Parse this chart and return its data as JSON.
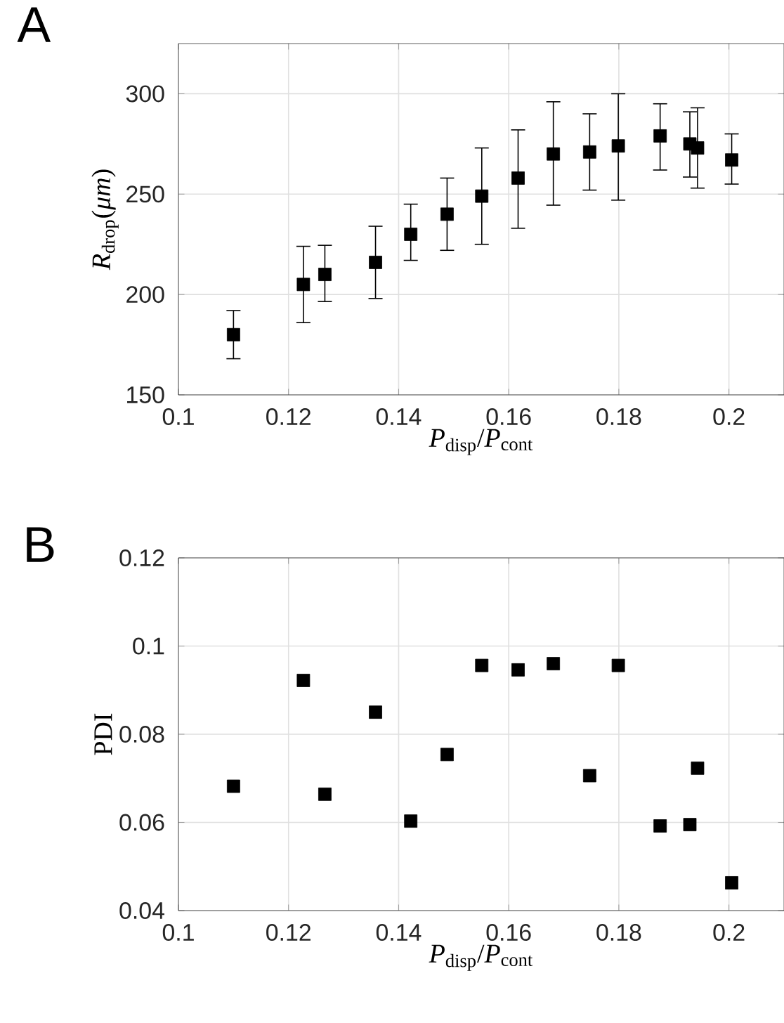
{
  "chart_data": [
    {
      "type": "scatter",
      "annotations": [
        "A"
      ],
      "xlabel": "*P*$_{disp}$/*P*$_{cont}$",
      "ylabel": "*R*$_{drop}$(*μm*)",
      "color": "#000000",
      "marker": "square",
      "grid": true,
      "x": [
        0.11,
        0.1227,
        0.1266,
        0.1358,
        0.1422,
        0.1488,
        0.1551,
        0.1617,
        0.1681,
        0.1747,
        0.1799,
        0.1875,
        0.1929,
        0.1943,
        0.2005
      ],
      "values": [
        180,
        205,
        210,
        216,
        230,
        240,
        249,
        258,
        270,
        271,
        274,
        279,
        275,
        273,
        267
      ],
      "errors": [
        [
          168,
          192
        ],
        [
          186,
          224
        ],
        [
          196.5,
          224.5
        ],
        [
          198,
          234
        ],
        [
          217,
          245
        ],
        [
          222,
          258
        ],
        [
          225,
          273
        ],
        [
          233,
          282
        ],
        [
          244.5,
          296
        ],
        [
          252,
          290
        ],
        [
          247,
          300
        ],
        [
          262,
          295
        ],
        [
          258.5,
          291
        ],
        [
          253,
          293
        ],
        [
          255,
          280
        ]
      ],
      "xlim": [
        0.1,
        0.21
      ],
      "xticks": [
        0.1,
        0.12,
        0.14,
        0.16,
        0.18,
        0.2
      ],
      "ylim": [
        150,
        325
      ],
      "yticks": [
        150,
        200,
        250,
        300
      ]
    },
    {
      "type": "scatter",
      "annotations": [
        "B"
      ],
      "xlabel": "*P*$_{disp}$/*P*$_{cont}$",
      "ylabel": "PDI",
      "color": "#000000",
      "marker": "square",
      "grid": true,
      "x": [
        0.11,
        0.1227,
        0.1266,
        0.1358,
        0.1422,
        0.1488,
        0.1551,
        0.1617,
        0.1681,
        0.1747,
        0.1799,
        0.1875,
        0.1929,
        0.1943,
        0.2005
      ],
      "values": [
        0.0682,
        0.0922,
        0.0664,
        0.085,
        0.0603,
        0.0754,
        0.0956,
        0.0946,
        0.096,
        0.0706,
        0.0956,
        0.0592,
        0.0595,
        0.0723,
        0.0463
      ],
      "xlim": [
        0.1,
        0.21
      ],
      "xticks": [
        0.1,
        0.12,
        0.14,
        0.16,
        0.18,
        0.2
      ],
      "ylim": [
        0.04,
        0.12
      ],
      "yticks": [
        0.04,
        0.06,
        0.08,
        0.1,
        0.12
      ]
    }
  ]
}
